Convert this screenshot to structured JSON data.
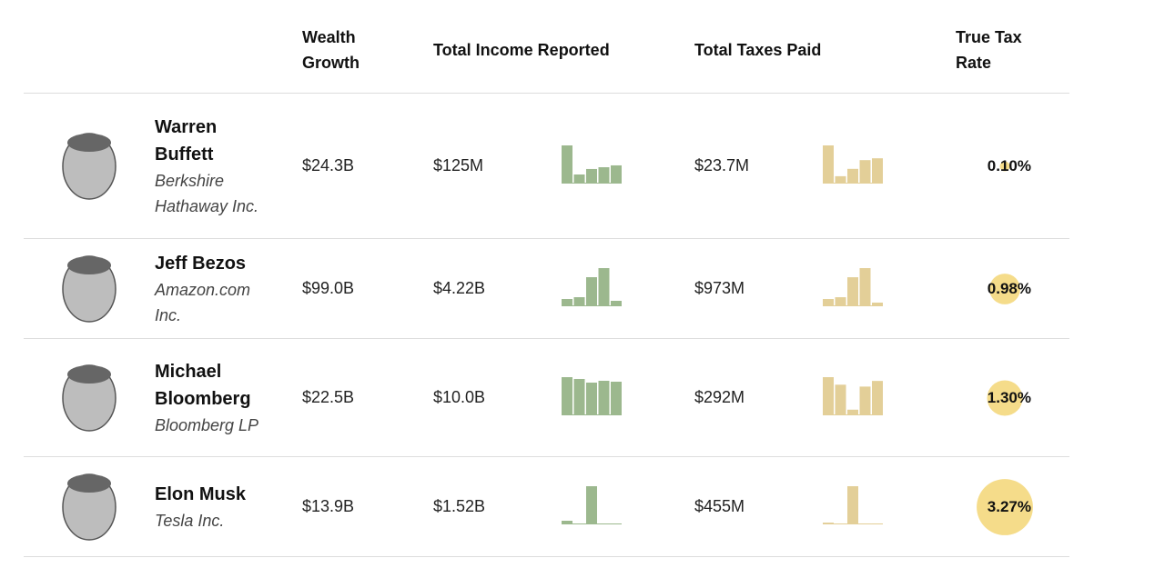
{
  "header": {
    "wealth_growth": "Wealth Growth",
    "total_income": "Total Income Reported",
    "total_taxes": "Total Taxes Paid",
    "true_tax_rate": "True Tax Rate"
  },
  "rows": [
    {
      "name": "Warren Buffett",
      "company": "Berkshire Hathaway Inc.",
      "wealth_growth": "$24.3B",
      "total_income": "$125M",
      "income_by_year": [
        49.5,
        11.8,
        18.9,
        21.2,
        23.6
      ],
      "total_taxes": "$23.7M",
      "taxes_by_year": [
        8.3,
        1.6,
        3.2,
        5.1,
        5.5
      ],
      "true_tax_rate": {
        "value": 0.1,
        "label": "0.10%"
      }
    },
    {
      "name": "Jeff Bezos",
      "company": "Amazon.com Inc.",
      "wealth_growth": "$99.0B",
      "total_income": "$4.22B",
      "income_by_year": [
        344,
        430,
        1378,
        1809,
        258
      ],
      "total_taxes": "$973M",
      "taxes_by_year": [
        81,
        101,
        324,
        426,
        41
      ],
      "true_tax_rate": {
        "value": 0.98,
        "label": "0.98%"
      }
    },
    {
      "name": "Michael Bloomberg",
      "company": "Bloomberg LP",
      "wealth_growth": "$22.5B",
      "total_income": "$10.0B",
      "income_by_year": [
        2176,
        2073,
        1865,
        1969,
        1917
      ],
      "total_taxes": "$292M",
      "taxes_by_year": [
        81,
        65,
        12,
        61,
        73
      ],
      "true_tax_rate": {
        "value": 1.3,
        "label": "1.30%"
      }
    },
    {
      "name": "Elon Musk",
      "company": "Tesla Inc.",
      "wealth_growth": "$13.9B",
      "total_income": "$1.52B",
      "income_by_year": [
        124,
        31,
        1303,
        31,
        31
      ],
      "total_taxes": "$455M",
      "taxes_by_year": [
        19,
        10,
        407,
        10,
        10
      ],
      "true_tax_rate": {
        "value": 3.27,
        "label": "3.27%"
      }
    }
  ]
}
